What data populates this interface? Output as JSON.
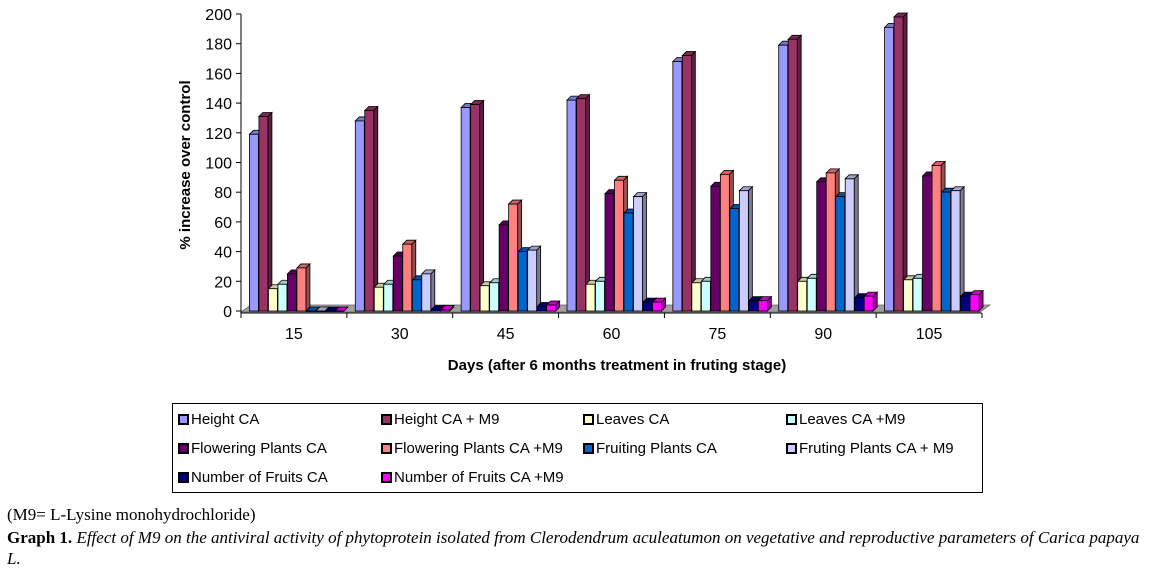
{
  "chart_data": {
    "type": "bar",
    "style": "3d-clustered-column",
    "title": "",
    "xlabel": "Days (after 6 months treatment in fruting stage)",
    "ylabel": "% increase over control",
    "ylim": [
      0,
      200
    ],
    "yticks": [
      0,
      20,
      40,
      60,
      80,
      100,
      120,
      140,
      160,
      180,
      200
    ],
    "grid": false,
    "legend_position": "bottom",
    "categories": [
      "15",
      "30",
      "45",
      "60",
      "75",
      "90",
      "105"
    ],
    "series": [
      {
        "name": "Height CA",
        "color": "#9999ff",
        "values": [
          119,
          128,
          137,
          142,
          168,
          179,
          191
        ]
      },
      {
        "name": "Height CA + M9",
        "color": "#993366",
        "values": [
          131,
          135,
          139,
          143,
          172,
          183,
          198
        ]
      },
      {
        "name": "Leaves CA",
        "color": "#ffffcc",
        "values": [
          15,
          16,
          17,
          18,
          19,
          20,
          21
        ]
      },
      {
        "name": "Leaves CA +M9",
        "color": "#ccffff",
        "values": [
          18,
          18,
          19,
          20,
          20,
          22,
          22
        ]
      },
      {
        "name": "Flowering Plants CA",
        "color": "#660066",
        "values": [
          25,
          37,
          58,
          79,
          84,
          87,
          91
        ]
      },
      {
        "name": "Flowering Plants CA +M9",
        "color": "#ff8080",
        "values": [
          29,
          45,
          72,
          88,
          92,
          93,
          98
        ]
      },
      {
        "name": "Fruiting Plants CA",
        "color": "#0066cc",
        "values": [
          0,
          21,
          40,
          66,
          69,
          77,
          80
        ]
      },
      {
        "name": "Fruting Plants CA + M9",
        "color": "#ccccff",
        "values": [
          0,
          25,
          41,
          77,
          81,
          89,
          81
        ]
      },
      {
        "name": "Number of Fruits CA",
        "color": "#000080",
        "values": [
          0,
          1,
          3,
          6,
          7,
          9,
          10
        ]
      },
      {
        "name": "Number of Fruits CA +M9",
        "color": "#ff00ff",
        "values": [
          0,
          1,
          4,
          6,
          7,
          10,
          11
        ]
      }
    ]
  },
  "footnote": "(M9= L-Lysine monohydrochloride)",
  "caption": {
    "label": "Graph 1.",
    "text": " Effect of M9 on the antiviral activity of phytoprotein isolated from Clerodendrum aculeatumon on vegetative and reproductive parameters of Carica papaya L."
  }
}
